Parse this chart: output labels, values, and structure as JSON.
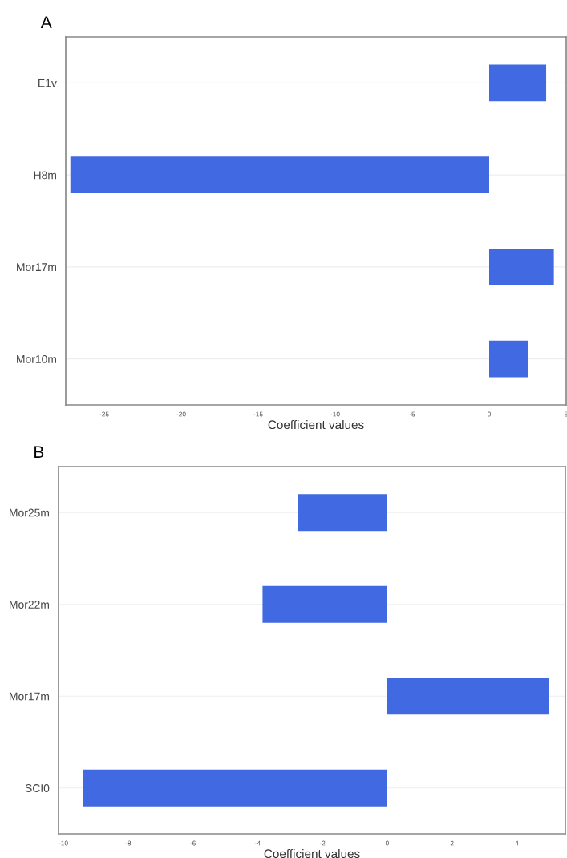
{
  "chart_data": [
    {
      "type": "bar",
      "orientation": "horizontal",
      "title": "A",
      "xlabel": "Coefficient values",
      "categories": [
        "E1v",
        "H8m",
        "Mor17m",
        "Mor10m"
      ],
      "values": [
        3.7,
        -27.2,
        4.2,
        2.5
      ],
      "color": "#4169e1",
      "xlim": [
        -27.5,
        5
      ],
      "xticks": [
        -25,
        -20,
        -15,
        -10,
        -5,
        0,
        5
      ],
      "grid": "y"
    },
    {
      "type": "bar",
      "orientation": "horizontal",
      "title": "B",
      "xlabel": "Coefficient values",
      "categories": [
        "Mor25m",
        "Mor22m",
        "Mor17m",
        "SCI0"
      ],
      "values": [
        -2.75,
        -3.85,
        5.0,
        -9.4
      ],
      "color": "#4169e1",
      "xlim": [
        -10.15,
        5.5
      ],
      "xticks": [
        -10,
        -8,
        -6,
        -4,
        -2,
        0,
        2,
        4
      ],
      "grid": "y"
    }
  ]
}
